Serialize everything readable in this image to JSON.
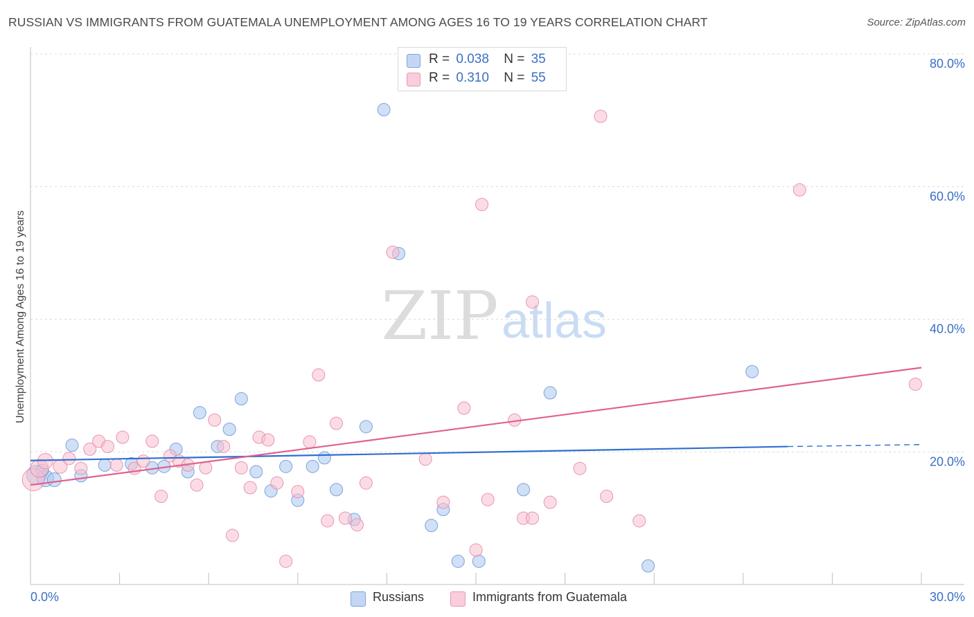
{
  "title": "RUSSIAN VS IMMIGRANTS FROM GUATEMALA UNEMPLOYMENT AMONG AGES 16 TO 19 YEARS CORRELATION CHART",
  "source": "Source: ZipAtlas.com",
  "legend_stats": [
    {
      "r_label": "R =",
      "r_value": "0.038",
      "n_label": "N =",
      "n_value": "35"
    },
    {
      "r_label": "R =",
      "r_value": "0.310",
      "n_label": "N =",
      "n_value": "55"
    }
  ],
  "chart_data": {
    "type": "scatter",
    "title": "RUSSIAN VS IMMIGRANTS FROM GUATEMALA UNEMPLOYMENT AMONG AGES 16 TO 19 YEARS CORRELATION CHART",
    "xlabel": "",
    "ylabel": "Unemployment Among Ages 16 to 19 years",
    "xlim": [
      0,
      30
    ],
    "ylim": [
      0,
      80
    ],
    "x_tick_labels": [
      "0.0%",
      "30.0%"
    ],
    "y_ticks": [
      20,
      40,
      60,
      80
    ],
    "y_tick_labels": [
      "20.0%",
      "40.0%",
      "60.0%",
      "80.0%"
    ],
    "grid": true,
    "legend_position": "bottom",
    "watermark": {
      "part1": "ZIP",
      "part2": "atlas"
    },
    "series": [
      {
        "name": "Russians",
        "color": "#a9c6f0",
        "edge_color": "#6f9ad6",
        "line_color": "#2f6fcf",
        "r": 0.038,
        "n": 35,
        "trend": {
          "x0": 0,
          "y0": 18.7,
          "x1": 25.5,
          "y1": 20.8,
          "dash_to_x": 30,
          "dash_to_y": 21.1
        },
        "points": [
          [
            0.2,
            16.5,
            14
          ],
          [
            0.5,
            16,
            12
          ],
          [
            0.8,
            15.8,
            10
          ],
          [
            1.4,
            21,
            9
          ],
          [
            1.7,
            16.4,
            9
          ],
          [
            2.5,
            18,
            9
          ],
          [
            3.4,
            18.2,
            9
          ],
          [
            4.1,
            17.6,
            9
          ],
          [
            4.5,
            17.8,
            9
          ],
          [
            4.9,
            20.4,
            9
          ],
          [
            5.3,
            17,
            9
          ],
          [
            5.7,
            25.9,
            9
          ],
          [
            6.3,
            20.8,
            9
          ],
          [
            6.7,
            23.4,
            9
          ],
          [
            7.1,
            28,
            9
          ],
          [
            7.6,
            17,
            9
          ],
          [
            8.1,
            14.1,
            9
          ],
          [
            8.6,
            17.8,
            9
          ],
          [
            9.0,
            12.7,
            9
          ],
          [
            9.5,
            17.8,
            9
          ],
          [
            9.9,
            19.1,
            9
          ],
          [
            10.3,
            14.3,
            9
          ],
          [
            10.9,
            9.8,
            9
          ],
          [
            11.3,
            23.8,
            9
          ],
          [
            11.9,
            71.6,
            9
          ],
          [
            12.4,
            49.9,
            9
          ],
          [
            13.5,
            8.9,
            9
          ],
          [
            13.9,
            11.3,
            9
          ],
          [
            14.4,
            3.5,
            9
          ],
          [
            15.1,
            3.5,
            9
          ],
          [
            16.6,
            14.3,
            9
          ],
          [
            17.5,
            28.9,
            9
          ],
          [
            20.8,
            2.8,
            9
          ],
          [
            24.3,
            32.1,
            9
          ],
          [
            0.4,
            17.2,
            9
          ]
        ]
      },
      {
        "name": "Immigrants from Guatemala",
        "color": "#f7bfd0",
        "edge_color": "#e88aa8",
        "line_color": "#e0608e",
        "r": 0.31,
        "n": 55,
        "trend": {
          "x0": 0,
          "y0": 15,
          "x1": 30,
          "y1": 32.7
        },
        "points": [
          [
            0.1,
            15.8,
            16
          ],
          [
            0.3,
            17.5,
            13
          ],
          [
            0.5,
            18.6,
            11
          ],
          [
            1.0,
            17.8,
            10
          ],
          [
            1.3,
            19,
            9
          ],
          [
            1.7,
            17.5,
            9
          ],
          [
            2.0,
            20.4,
            9
          ],
          [
            2.3,
            21.6,
            9
          ],
          [
            2.6,
            20.8,
            9
          ],
          [
            2.9,
            18,
            9
          ],
          [
            3.1,
            22.2,
            9
          ],
          [
            3.5,
            17.5,
            9
          ],
          [
            3.8,
            18.6,
            9
          ],
          [
            4.1,
            21.6,
            9
          ],
          [
            4.4,
            13.3,
            9
          ],
          [
            4.7,
            19.4,
            9
          ],
          [
            5.0,
            18.6,
            9
          ],
          [
            5.3,
            18,
            9
          ],
          [
            5.6,
            15,
            9
          ],
          [
            5.9,
            17.6,
            9
          ],
          [
            6.2,
            24.8,
            9
          ],
          [
            6.5,
            20.8,
            9
          ],
          [
            6.8,
            7.4,
            9
          ],
          [
            7.1,
            17.6,
            9
          ],
          [
            7.4,
            14.6,
            9
          ],
          [
            7.7,
            22.2,
            9
          ],
          [
            8.0,
            21.8,
            9
          ],
          [
            8.3,
            15.3,
            9
          ],
          [
            8.6,
            3.5,
            9
          ],
          [
            9.0,
            14,
            9
          ],
          [
            9.4,
            21.5,
            9
          ],
          [
            9.7,
            31.6,
            9
          ],
          [
            10.0,
            9.6,
            9
          ],
          [
            10.3,
            24.3,
            9
          ],
          [
            10.6,
            10,
            9
          ],
          [
            11.0,
            9,
            9
          ],
          [
            11.3,
            15.3,
            9
          ],
          [
            12.2,
            50.1,
            9
          ],
          [
            13.3,
            18.9,
            9
          ],
          [
            13.9,
            12.4,
            9
          ],
          [
            14.6,
            26.6,
            9
          ],
          [
            15.2,
            57.3,
            9
          ],
          [
            15.0,
            5.2,
            9
          ],
          [
            15.4,
            12.8,
            9
          ],
          [
            16.3,
            24.8,
            9
          ],
          [
            16.9,
            42.6,
            9
          ],
          [
            16.6,
            10,
            9
          ],
          [
            16.9,
            10,
            9
          ],
          [
            17.5,
            12.4,
            9
          ],
          [
            18.5,
            17.5,
            9
          ],
          [
            19.2,
            70.6,
            9
          ],
          [
            19.4,
            13.3,
            9
          ],
          [
            20.5,
            9.6,
            9
          ],
          [
            25.9,
            59.5,
            9
          ],
          [
            29.8,
            30.2,
            9
          ]
        ]
      }
    ]
  }
}
